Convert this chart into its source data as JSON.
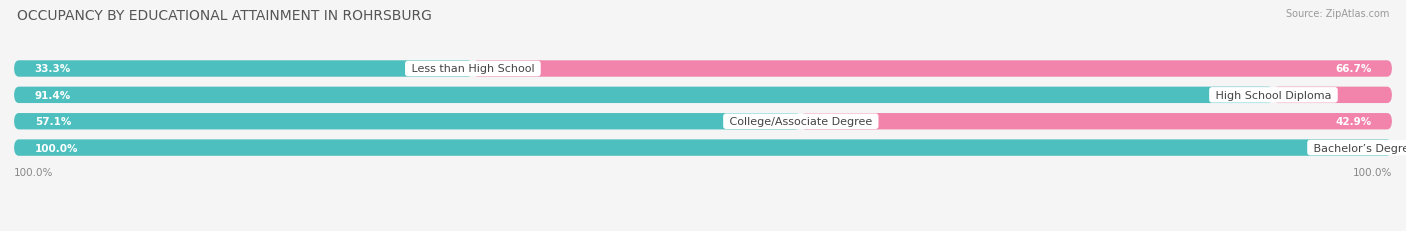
{
  "title": "OCCUPANCY BY EDUCATIONAL ATTAINMENT IN ROHRSBURG",
  "source": "Source: ZipAtlas.com",
  "categories": [
    "Less than High School",
    "High School Diploma",
    "College/Associate Degree",
    "Bachelor’s Degree or higher"
  ],
  "owner_pct": [
    33.3,
    91.4,
    57.1,
    100.0
  ],
  "renter_pct": [
    66.7,
    8.6,
    42.9,
    0.0
  ],
  "owner_color": "#4DBFBF",
  "renter_color": "#F283AA",
  "bar_bg_color": "#E8E8EC",
  "bg_color": "#F5F5F5",
  "title_fontsize": 10,
  "label_fontsize": 8,
  "tick_fontsize": 7.5,
  "source_fontsize": 7,
  "bar_height": 0.62,
  "bar_gap": 0.18,
  "figsize": [
    14.06,
    2.32
  ]
}
